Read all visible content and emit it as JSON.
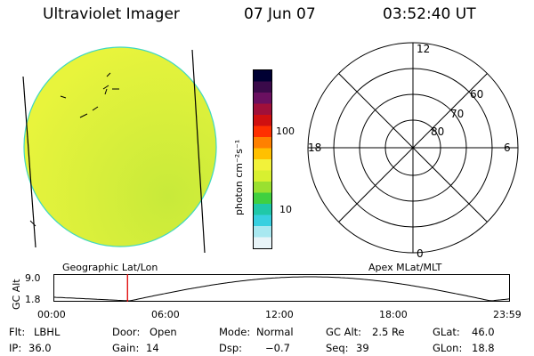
{
  "header": {
    "instrument": "Ultraviolet Imager",
    "date": "07 Jun 07",
    "time": "03:52:40 UT"
  },
  "colorbar": {
    "unit_label": "photon cm⁻²s⁻¹",
    "tick_labels": [
      "100",
      "10"
    ],
    "colors": [
      "#000033",
      "#3a0a4a",
      "#6a1060",
      "#a0103a",
      "#d01010",
      "#ff3000",
      "#ff8000",
      "#ffc000",
      "#f2f23a",
      "#d8f030",
      "#9ae030",
      "#40d040",
      "#20c8a8",
      "#38d0e0",
      "#a8e8f0",
      "#e8f4f8"
    ]
  },
  "left_panel": {
    "caption": "Geographic Lat/Lon",
    "disk_color": "#d6ef3a"
  },
  "right_panel": {
    "caption": "Apex MLat/MLT",
    "mlt_labels": {
      "top": "12",
      "right": "6",
      "bottom": "0",
      "left": "18"
    },
    "lat_labels": [
      "60",
      "70",
      "80"
    ]
  },
  "altitude_plot": {
    "axis_title": "GC Alt",
    "y_ticks": [
      "9.0",
      "1.8"
    ],
    "x_ticks": [
      "00:00",
      "06:00",
      "12:00",
      "18:00",
      "23:59"
    ],
    "current_marker_hours": 3.88,
    "marker_color": "#e00000"
  },
  "info": {
    "row1": [
      {
        "label": "Flt:",
        "value": "LBHL"
      },
      {
        "label": "Door:",
        "value": "Open"
      },
      {
        "label": "Mode:",
        "value": "Normal"
      },
      {
        "label": "GC Alt:",
        "value": "2.5 Re"
      },
      {
        "label": "GLat:",
        "value": "46.0"
      }
    ],
    "row2": [
      {
        "label": "IP:",
        "value": "36.0"
      },
      {
        "label": "Gain:",
        "value": "14"
      },
      {
        "label": "Dsp:",
        "value": "−0.7"
      },
      {
        "label": "Seq:",
        "value": "39"
      },
      {
        "label": "GLon:",
        "value": "18.8"
      }
    ]
  }
}
